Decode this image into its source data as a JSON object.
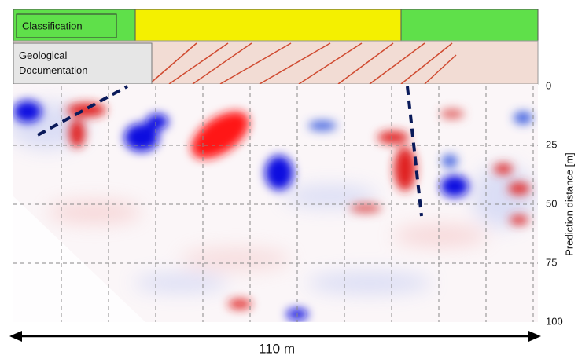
{
  "chart_data": {
    "type": "heatmap",
    "bands": {
      "classification": "Classification",
      "geology": "Geological Documentation"
    },
    "ylabel": "Prediction distance [m]",
    "ylim": [
      0,
      100
    ],
    "yticks": [
      0,
      25,
      50,
      75,
      100
    ],
    "span_label": "110 m",
    "grid": true
  }
}
